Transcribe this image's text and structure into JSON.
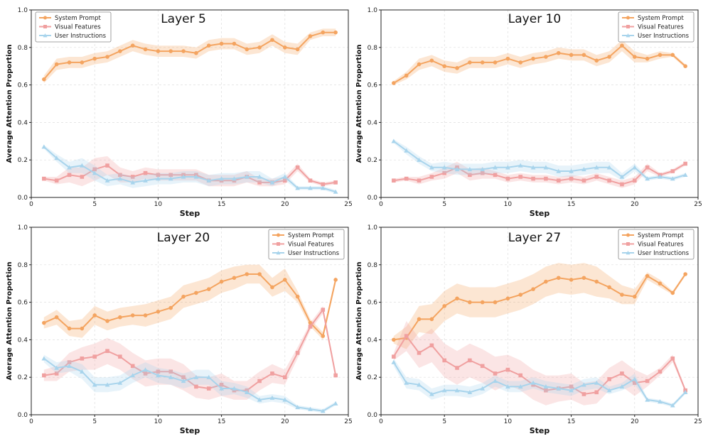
{
  "chart_data": [
    {
      "type": "line",
      "title": "Layer 5",
      "xlabel": "Step",
      "ylabel": "Average Attention Proportion",
      "xlim": [
        0,
        25
      ],
      "ylim": [
        0,
        1.0
      ],
      "xticks": [
        "0",
        "5",
        "10",
        "15",
        "20",
        "25"
      ],
      "yticks": [
        "0.0",
        "0.2",
        "0.4",
        "0.6",
        "0.8",
        "1.0"
      ],
      "legend_position": "top-left",
      "x": [
        1,
        2,
        3,
        4,
        5,
        6,
        7,
        8,
        9,
        10,
        11,
        12,
        13,
        14,
        15,
        16,
        17,
        18,
        19,
        20,
        21,
        22,
        23,
        24
      ],
      "series": [
        {
          "name": "System Prompt",
          "color": "#f4a460",
          "marker": "circle",
          "values": [
            0.63,
            0.71,
            0.72,
            0.72,
            0.74,
            0.75,
            0.78,
            0.81,
            0.79,
            0.78,
            0.78,
            0.78,
            0.77,
            0.81,
            0.82,
            0.82,
            0.79,
            0.8,
            0.84,
            0.8,
            0.79,
            0.86,
            0.88,
            0.88
          ],
          "band": [
            0.02,
            0.03,
            0.03,
            0.03,
            0.03,
            0.03,
            0.03,
            0.03,
            0.03,
            0.03,
            0.03,
            0.03,
            0.03,
            0.03,
            0.03,
            0.03,
            0.03,
            0.03,
            0.03,
            0.03,
            0.03,
            0.02,
            0.02,
            0.02
          ]
        },
        {
          "name": "Visual Features",
          "color": "#f0a0a0",
          "marker": "square",
          "values": [
            0.1,
            0.09,
            0.12,
            0.11,
            0.15,
            0.17,
            0.12,
            0.11,
            0.13,
            0.12,
            0.12,
            0.12,
            0.12,
            0.09,
            0.09,
            0.09,
            0.11,
            0.08,
            0.08,
            0.09,
            0.16,
            0.09,
            0.07,
            0.08
          ],
          "band": [
            0.01,
            0.02,
            0.04,
            0.05,
            0.06,
            0.05,
            0.04,
            0.03,
            0.03,
            0.03,
            0.03,
            0.03,
            0.03,
            0.03,
            0.03,
            0.03,
            0.03,
            0.02,
            0.02,
            0.02,
            0.02,
            0.01,
            0.01,
            0.01
          ]
        },
        {
          "name": "User Instructions",
          "color": "#a8d4ec",
          "marker": "triangle",
          "values": [
            0.27,
            0.21,
            0.16,
            0.17,
            0.13,
            0.09,
            0.1,
            0.08,
            0.09,
            0.1,
            0.1,
            0.11,
            0.11,
            0.09,
            0.1,
            0.1,
            0.11,
            0.11,
            0.08,
            0.11,
            0.05,
            0.05,
            0.05,
            0.03
          ],
          "band": [
            0.01,
            0.02,
            0.03,
            0.04,
            0.04,
            0.03,
            0.03,
            0.03,
            0.03,
            0.03,
            0.03,
            0.03,
            0.03,
            0.03,
            0.03,
            0.03,
            0.03,
            0.03,
            0.02,
            0.02,
            0.01,
            0.01,
            0.01,
            0.01
          ]
        }
      ]
    },
    {
      "type": "line",
      "title": "Layer 10",
      "xlabel": "Step",
      "ylabel": "Average Attention Proportion",
      "xlim": [
        0,
        25
      ],
      "ylim": [
        0,
        1.0
      ],
      "xticks": [
        "0",
        "5",
        "10",
        "15",
        "20",
        "25"
      ],
      "yticks": [
        "0.0",
        "0.2",
        "0.4",
        "0.6",
        "0.8",
        "1.0"
      ],
      "legend_position": "top-right",
      "x": [
        1,
        2,
        3,
        4,
        5,
        6,
        7,
        8,
        9,
        10,
        11,
        12,
        13,
        14,
        15,
        16,
        17,
        18,
        19,
        20,
        21,
        22,
        23,
        24
      ],
      "series": [
        {
          "name": "System Prompt",
          "color": "#f4a460",
          "marker": "circle",
          "values": [
            0.61,
            0.65,
            0.71,
            0.73,
            0.7,
            0.69,
            0.72,
            0.72,
            0.72,
            0.74,
            0.72,
            0.74,
            0.75,
            0.77,
            0.76,
            0.76,
            0.73,
            0.75,
            0.81,
            0.75,
            0.74,
            0.76,
            0.76,
            0.7
          ],
          "band": [
            0.01,
            0.02,
            0.03,
            0.03,
            0.03,
            0.03,
            0.03,
            0.03,
            0.03,
            0.03,
            0.03,
            0.03,
            0.03,
            0.03,
            0.03,
            0.03,
            0.03,
            0.03,
            0.03,
            0.03,
            0.02,
            0.02,
            0.01,
            0.01
          ]
        },
        {
          "name": "Visual Features",
          "color": "#f0a0a0",
          "marker": "square",
          "values": [
            0.09,
            0.1,
            0.09,
            0.11,
            0.13,
            0.16,
            0.12,
            0.13,
            0.12,
            0.1,
            0.11,
            0.1,
            0.1,
            0.09,
            0.1,
            0.09,
            0.11,
            0.09,
            0.07,
            0.09,
            0.16,
            0.12,
            0.14,
            0.18
          ],
          "band": [
            0.01,
            0.01,
            0.02,
            0.02,
            0.03,
            0.03,
            0.03,
            0.03,
            0.02,
            0.02,
            0.02,
            0.02,
            0.02,
            0.02,
            0.02,
            0.02,
            0.02,
            0.02,
            0.02,
            0.02,
            0.02,
            0.01,
            0.01,
            0.01
          ]
        },
        {
          "name": "User Instructions",
          "color": "#a8d4ec",
          "marker": "triangle",
          "values": [
            0.3,
            0.25,
            0.2,
            0.16,
            0.16,
            0.15,
            0.15,
            0.15,
            0.16,
            0.16,
            0.17,
            0.16,
            0.16,
            0.14,
            0.14,
            0.15,
            0.16,
            0.16,
            0.11,
            0.16,
            0.1,
            0.11,
            0.1,
            0.12
          ],
          "band": [
            0.01,
            0.02,
            0.02,
            0.02,
            0.03,
            0.03,
            0.03,
            0.03,
            0.03,
            0.03,
            0.03,
            0.03,
            0.03,
            0.03,
            0.03,
            0.03,
            0.03,
            0.03,
            0.02,
            0.02,
            0.01,
            0.01,
            0.01,
            0.01
          ]
        }
      ]
    },
    {
      "type": "line",
      "title": "Layer 20",
      "xlabel": "Step",
      "ylabel": "Average Attention Proportion",
      "xlim": [
        0,
        25
      ],
      "ylim": [
        0,
        1.0
      ],
      "xticks": [
        "0",
        "5",
        "10",
        "15",
        "20",
        "25"
      ],
      "yticks": [
        "0.0",
        "0.2",
        "0.4",
        "0.6",
        "0.8",
        "1.0"
      ],
      "legend_position": "top-right",
      "x": [
        1,
        2,
        3,
        4,
        5,
        6,
        7,
        8,
        9,
        10,
        11,
        12,
        13,
        14,
        15,
        16,
        17,
        18,
        19,
        20,
        21,
        22,
        23,
        24
      ],
      "series": [
        {
          "name": "System Prompt",
          "color": "#f4a460",
          "marker": "circle",
          "values": [
            0.49,
            0.52,
            0.46,
            0.46,
            0.53,
            0.5,
            0.52,
            0.53,
            0.53,
            0.55,
            0.57,
            0.63,
            0.65,
            0.67,
            0.71,
            0.73,
            0.75,
            0.75,
            0.68,
            0.72,
            0.63,
            0.49,
            0.42,
            0.72
          ],
          "band": [
            0.03,
            0.04,
            0.04,
            0.05,
            0.05,
            0.05,
            0.05,
            0.05,
            0.06,
            0.06,
            0.06,
            0.06,
            0.06,
            0.06,
            0.06,
            0.06,
            0.05,
            0.05,
            0.05,
            0.06,
            0.03,
            0.02,
            0.02,
            0.02
          ]
        },
        {
          "name": "Visual Features",
          "color": "#f0a0a0",
          "marker": "square",
          "values": [
            0.21,
            0.22,
            0.28,
            0.3,
            0.31,
            0.34,
            0.31,
            0.26,
            0.22,
            0.23,
            0.23,
            0.2,
            0.15,
            0.14,
            0.16,
            0.13,
            0.13,
            0.18,
            0.22,
            0.2,
            0.33,
            0.47,
            0.56,
            0.21
          ],
          "band": [
            0.03,
            0.04,
            0.05,
            0.06,
            0.07,
            0.07,
            0.07,
            0.07,
            0.07,
            0.07,
            0.07,
            0.07,
            0.06,
            0.06,
            0.06,
            0.05,
            0.05,
            0.05,
            0.05,
            0.04,
            0.03,
            0.02,
            0.02,
            0.02
          ]
        },
        {
          "name": "User Instructions",
          "color": "#a8d4ec",
          "marker": "triangle",
          "values": [
            0.3,
            0.25,
            0.26,
            0.23,
            0.16,
            0.16,
            0.17,
            0.21,
            0.24,
            0.21,
            0.2,
            0.18,
            0.2,
            0.2,
            0.14,
            0.14,
            0.12,
            0.08,
            0.09,
            0.08,
            0.04,
            0.03,
            0.02,
            0.06
          ],
          "band": [
            0.02,
            0.03,
            0.03,
            0.04,
            0.04,
            0.04,
            0.04,
            0.04,
            0.04,
            0.04,
            0.04,
            0.04,
            0.04,
            0.04,
            0.04,
            0.03,
            0.03,
            0.02,
            0.02,
            0.02,
            0.01,
            0.01,
            0.01,
            0.01
          ]
        }
      ]
    },
    {
      "type": "line",
      "title": "Layer 27",
      "xlabel": "Step",
      "ylabel": "Average Attention Proportion",
      "xlim": [
        0,
        25
      ],
      "ylim": [
        0,
        1.0
      ],
      "xticks": [
        "0",
        "5",
        "10",
        "15",
        "20",
        "25"
      ],
      "yticks": [
        "0.0",
        "0.2",
        "0.4",
        "0.6",
        "0.8",
        "1.0"
      ],
      "legend_position": "top-right",
      "x": [
        1,
        2,
        3,
        4,
        5,
        6,
        7,
        8,
        9,
        10,
        11,
        12,
        13,
        14,
        15,
        16,
        17,
        18,
        19,
        20,
        21,
        22,
        23,
        24
      ],
      "series": [
        {
          "name": "System Prompt",
          "color": "#f4a460",
          "marker": "circle",
          "values": [
            0.4,
            0.41,
            0.51,
            0.51,
            0.58,
            0.62,
            0.6,
            0.6,
            0.6,
            0.62,
            0.64,
            0.67,
            0.71,
            0.73,
            0.72,
            0.73,
            0.71,
            0.68,
            0.64,
            0.63,
            0.74,
            0.7,
            0.65,
            0.75
          ],
          "band": [
            0.02,
            0.06,
            0.07,
            0.08,
            0.08,
            0.08,
            0.08,
            0.08,
            0.08,
            0.08,
            0.08,
            0.08,
            0.08,
            0.08,
            0.08,
            0.08,
            0.08,
            0.06,
            0.05,
            0.04,
            0.02,
            0.02,
            0.01,
            0.01
          ]
        },
        {
          "name": "Visual Features",
          "color": "#f0a0a0",
          "marker": "square",
          "values": [
            0.31,
            0.42,
            0.33,
            0.37,
            0.29,
            0.25,
            0.29,
            0.26,
            0.22,
            0.24,
            0.21,
            0.16,
            0.13,
            0.14,
            0.15,
            0.11,
            0.12,
            0.19,
            0.22,
            0.17,
            0.18,
            0.23,
            0.3,
            0.13
          ],
          "band": [
            0.02,
            0.08,
            0.08,
            0.09,
            0.09,
            0.09,
            0.09,
            0.09,
            0.09,
            0.08,
            0.08,
            0.08,
            0.08,
            0.07,
            0.07,
            0.06,
            0.06,
            0.06,
            0.07,
            0.07,
            0.03,
            0.02,
            0.02,
            0.01
          ]
        },
        {
          "name": "User Instructions",
          "color": "#a8d4ec",
          "marker": "triangle",
          "values": [
            0.28,
            0.17,
            0.16,
            0.11,
            0.13,
            0.13,
            0.12,
            0.14,
            0.18,
            0.15,
            0.15,
            0.17,
            0.15,
            0.14,
            0.13,
            0.16,
            0.17,
            0.13,
            0.15,
            0.19,
            0.08,
            0.07,
            0.05,
            0.12
          ],
          "band": [
            0.02,
            0.03,
            0.03,
            0.03,
            0.03,
            0.03,
            0.03,
            0.03,
            0.03,
            0.03,
            0.03,
            0.03,
            0.03,
            0.03,
            0.03,
            0.03,
            0.03,
            0.02,
            0.02,
            0.03,
            0.01,
            0.01,
            0.01,
            0.01
          ]
        }
      ]
    }
  ]
}
